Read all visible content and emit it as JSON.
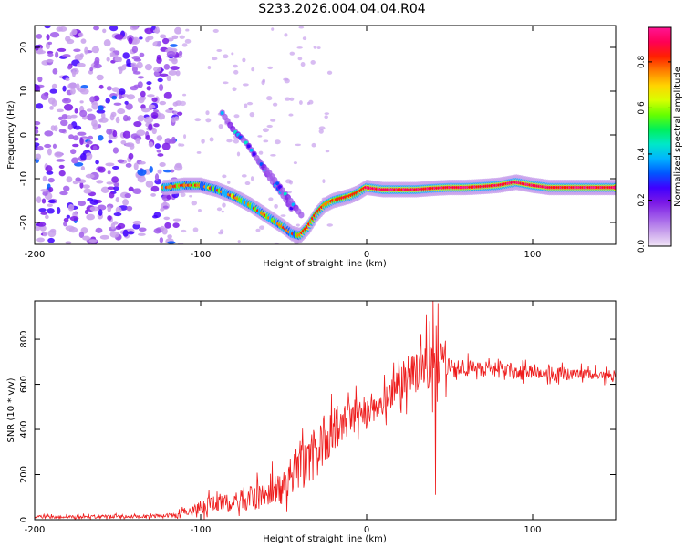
{
  "title": "S233.2026.004.04.04.R04",
  "colormap": [
    "#f2e6f7",
    "#c8a0ec",
    "#a05aea",
    "#7a18e6",
    "#3f00ff",
    "#0057ff",
    "#00b4ff",
    "#00e8c8",
    "#00f05a",
    "#66ff00",
    "#d8ff00",
    "#ffd400",
    "#ff8000",
    "#ff2000",
    "#ff0055",
    "#ff1493"
  ],
  "chart_data": [
    {
      "type": "heatmap",
      "title": "",
      "xlabel": "Height of straight line (km)",
      "ylabel": "Frequency (Hz)",
      "xlim": [
        -200,
        150
      ],
      "ylim": [
        -25,
        25
      ],
      "xticks": [
        -200,
        -100,
        0,
        100
      ],
      "xtick_labels": [
        "-200",
        "-100",
        "0",
        "100"
      ],
      "yticks": [
        -20,
        -10,
        0,
        10,
        20
      ],
      "ytick_labels": [
        "-20",
        "-10",
        "0",
        "10",
        "20"
      ],
      "colorbar": {
        "label": "Normalized spectral amplitude",
        "range": [
          0,
          0.95
        ],
        "ticks": [
          0,
          0.2,
          0.4,
          0.6,
          0.8
        ],
        "tick_labels": [
          "0.0",
          "0.2",
          "0.4",
          "0.6",
          "0.8"
        ]
      },
      "features": {
        "noise_region_x": [
          -200,
          -118
        ],
        "main_trace": {
          "x": [
            -120,
            -110,
            -100,
            -90,
            -80,
            -70,
            -60,
            -50,
            -45,
            -40,
            -35,
            -30,
            -25,
            -20,
            -15,
            -10,
            -5,
            0,
            10,
            20,
            30,
            40,
            50,
            60,
            70,
            80,
            90,
            100,
            110,
            120,
            130,
            150
          ],
          "y": [
            -12,
            -11.5,
            -11.5,
            -12.5,
            -14,
            -16,
            -18.5,
            -21,
            -22.5,
            -23,
            -21,
            -18,
            -16,
            -15,
            -14.5,
            -14,
            -13.2,
            -12,
            -12.5,
            -12.5,
            -12.5,
            -12.2,
            -12,
            -12,
            -11.8,
            -11.5,
            -10.8,
            -11.5,
            -12,
            -12,
            -12,
            -12
          ]
        },
        "diagonal_branch": {
          "x": [
            -87,
            -80,
            -72,
            -65,
            -58,
            -50,
            -45
          ],
          "y": [
            5,
            1,
            -2,
            -6,
            -10,
            -14,
            -17
          ]
        },
        "diagonal_branch2": {
          "x": [
            -65,
            -58,
            -50,
            -44,
            -38
          ],
          "y": [
            -6,
            -9,
            -13,
            -16,
            -19
          ]
        }
      }
    },
    {
      "type": "line",
      "title": "",
      "xlabel": "Height of straight line (km)",
      "ylabel": "SNR (10 * v/v)",
      "xlim": [
        -200,
        150
      ],
      "ylim": [
        0,
        970
      ],
      "xticks": [
        -200,
        -100,
        0,
        100
      ],
      "xtick_labels": [
        "-200",
        "-100",
        "0",
        "100"
      ],
      "yticks": [
        0,
        200,
        400,
        600,
        800
      ],
      "ytick_labels": [
        "0",
        "200",
        "400",
        "600",
        "800"
      ],
      "series": [
        {
          "name": "SNR",
          "color": "#ee1c1c",
          "x": [
            -200,
            -160,
            -130,
            -115,
            -105,
            -95,
            -85,
            -75,
            -65,
            -55,
            -45,
            -40,
            -35,
            -30,
            -25,
            -20,
            -15,
            -10,
            -5,
            0,
            5,
            10,
            15,
            20,
            25,
            30,
            35,
            40,
            45,
            50,
            60,
            70,
            80,
            90,
            100,
            110,
            120,
            130,
            140,
            150
          ],
          "base": [
            12,
            14,
            15,
            20,
            45,
            65,
            75,
            85,
            105,
            140,
            200,
            230,
            260,
            300,
            360,
            400,
            430,
            450,
            470,
            480,
            500,
            520,
            560,
            600,
            630,
            650,
            660,
            670,
            680,
            670,
            670,
            665,
            665,
            660,
            655,
            650,
            650,
            645,
            640,
            640
          ],
          "noise": [
            8,
            10,
            8,
            12,
            30,
            45,
            50,
            60,
            75,
            95,
            120,
            130,
            140,
            150,
            140,
            120,
            110,
            100,
            90,
            80,
            80,
            80,
            85,
            90,
            100,
            110,
            110,
            140,
            130,
            60,
            45,
            40,
            40,
            40,
            35,
            35,
            35,
            30,
            30,
            30
          ],
          "spikes": [
            {
              "x": 38,
              "y": 880
            },
            {
              "x": 40,
              "y": 980
            },
            {
              "x": 41.5,
              "y": 110
            },
            {
              "x": 36,
              "y": 910
            },
            {
              "x": 43,
              "y": 960
            }
          ]
        }
      ]
    }
  ]
}
